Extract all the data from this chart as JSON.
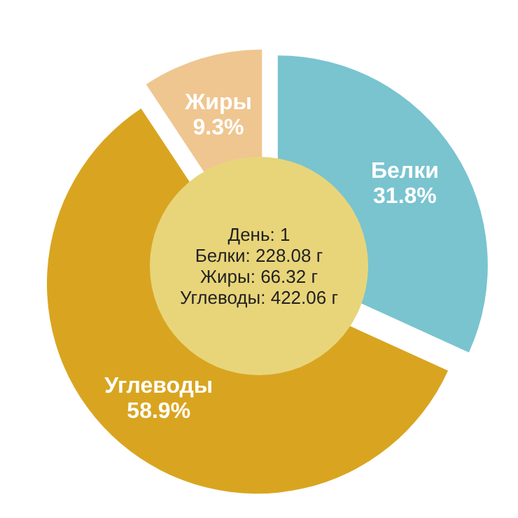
{
  "chart_data": {
    "type": "pie",
    "categories": [
      "Белки",
      "Углеводы",
      "Жиры"
    ],
    "values": [
      31.8,
      58.9,
      9.3
    ],
    "colors": [
      "#79c4cf",
      "#d9a520",
      "#efc690"
    ],
    "value_labels": [
      "31.8%",
      "58.9%",
      "9.3%"
    ],
    "legend": false,
    "annotations": [
      "День: 1",
      "Белки: 228.08 г",
      "Жиры: 66.32 г",
      "Углеводы: 422.06 г"
    ]
  }
}
